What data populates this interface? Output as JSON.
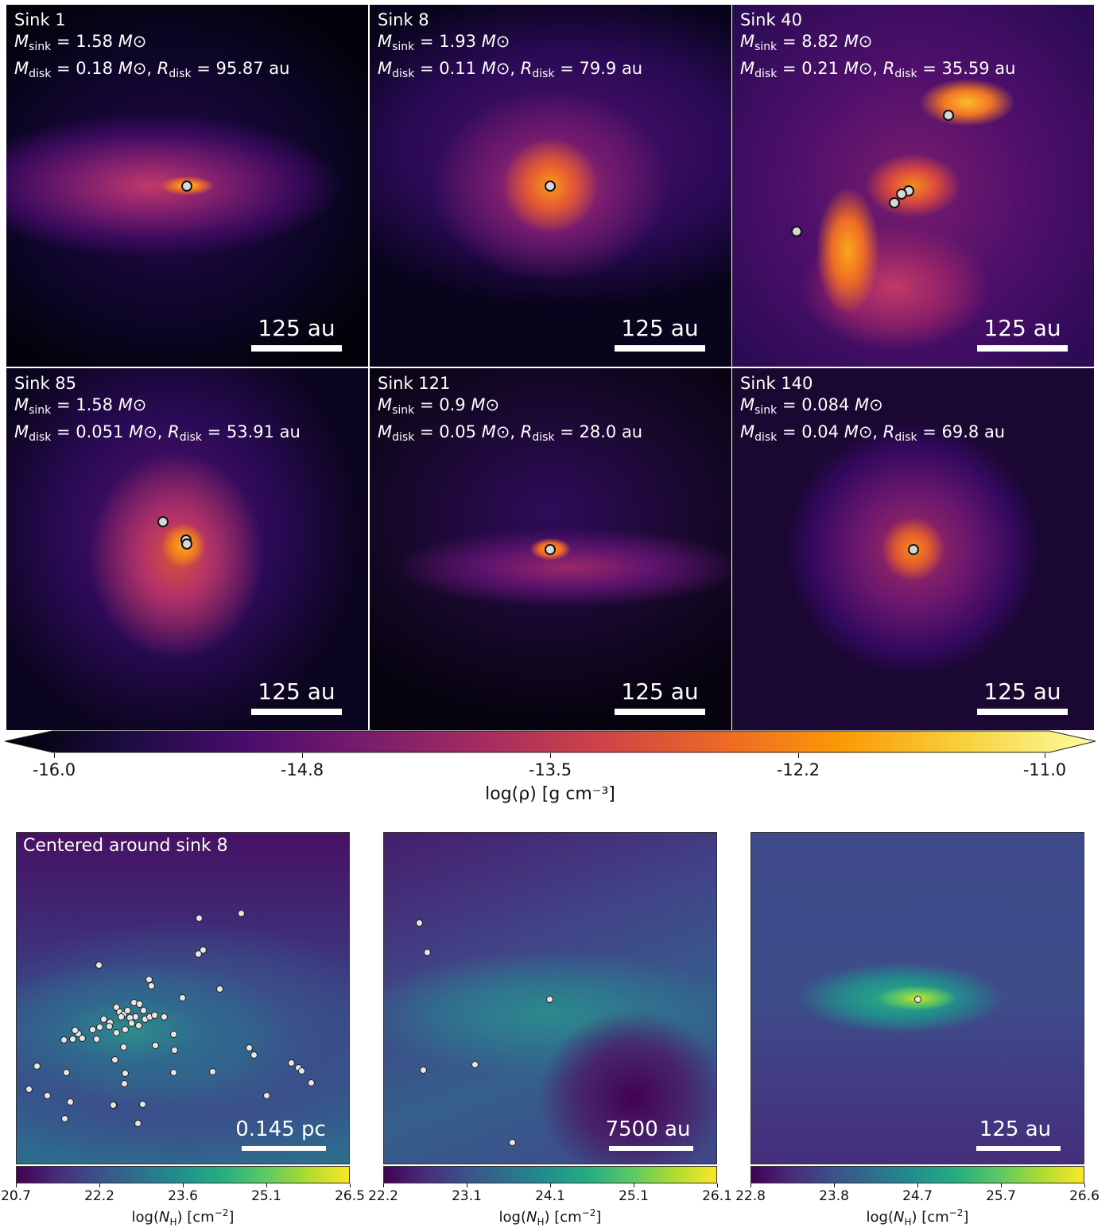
{
  "top_panels": [
    {
      "title": "Sink 1",
      "msink": "1.58",
      "mdisk": "0.18",
      "rdisk": "95.87",
      "scale": "125 au"
    },
    {
      "title": "Sink 8",
      "msink": "1.93",
      "mdisk": "0.11",
      "rdisk": "79.9",
      "scale": "125 au"
    },
    {
      "title": "Sink 40",
      "msink": "8.82",
      "mdisk": "0.21",
      "rdisk": "35.59",
      "scale": "125 au"
    },
    {
      "title": "Sink 85",
      "msink": "1.58",
      "mdisk": "0.051",
      "rdisk": "53.91",
      "scale": "125 au"
    },
    {
      "title": "Sink 121",
      "msink": "0.9",
      "mdisk": "0.05",
      "rdisk": "28.0",
      "scale": "125 au"
    },
    {
      "title": "Sink 140",
      "msink": "0.084",
      "mdisk": "0.04",
      "rdisk": "69.8",
      "scale": "125 au"
    }
  ],
  "density_colorbar": {
    "ticks": [
      "-16.0",
      "-14.8",
      "-13.5",
      "-12.2",
      "-11.0"
    ],
    "label": "log(ρ) [g cm⁻³]",
    "colormap": "inferno",
    "colors": [
      "#000004",
      "#1b0c41",
      "#4a0c6b",
      "#781c6d",
      "#a52c60",
      "#cf4446",
      "#ed6925",
      "#fb9b06",
      "#f7d13d",
      "#fcffa4"
    ]
  },
  "bottom_panels": [
    {
      "title": "Centered around sink 8",
      "scale": "0.145 pc",
      "ticks": [
        "20.7",
        "22.2",
        "23.6",
        "25.1",
        "26.5"
      ],
      "cbar_label": "log(N_H) [cm⁻²]"
    },
    {
      "title": "",
      "scale": "7500 au",
      "ticks": [
        "22.2",
        "23.1",
        "24.1",
        "25.1",
        "26.1"
      ],
      "cbar_label": "log(N_H) [cm⁻²]"
    },
    {
      "title": "",
      "scale": "125 au",
      "ticks": [
        "22.8",
        "23.8",
        "24.7",
        "25.7",
        "26.6"
      ],
      "cbar_label": "log(N_H) [cm⁻²]"
    }
  ],
  "column_colormap": "viridis",
  "labels": {
    "msink_sym": "M",
    "msink_sub": "sink",
    "mdisk_sym": "M",
    "mdisk_sub": "disk",
    "rdisk_sym": "R",
    "rdisk_sub": "disk",
    "msun": "M⊙",
    "au": "au"
  }
}
